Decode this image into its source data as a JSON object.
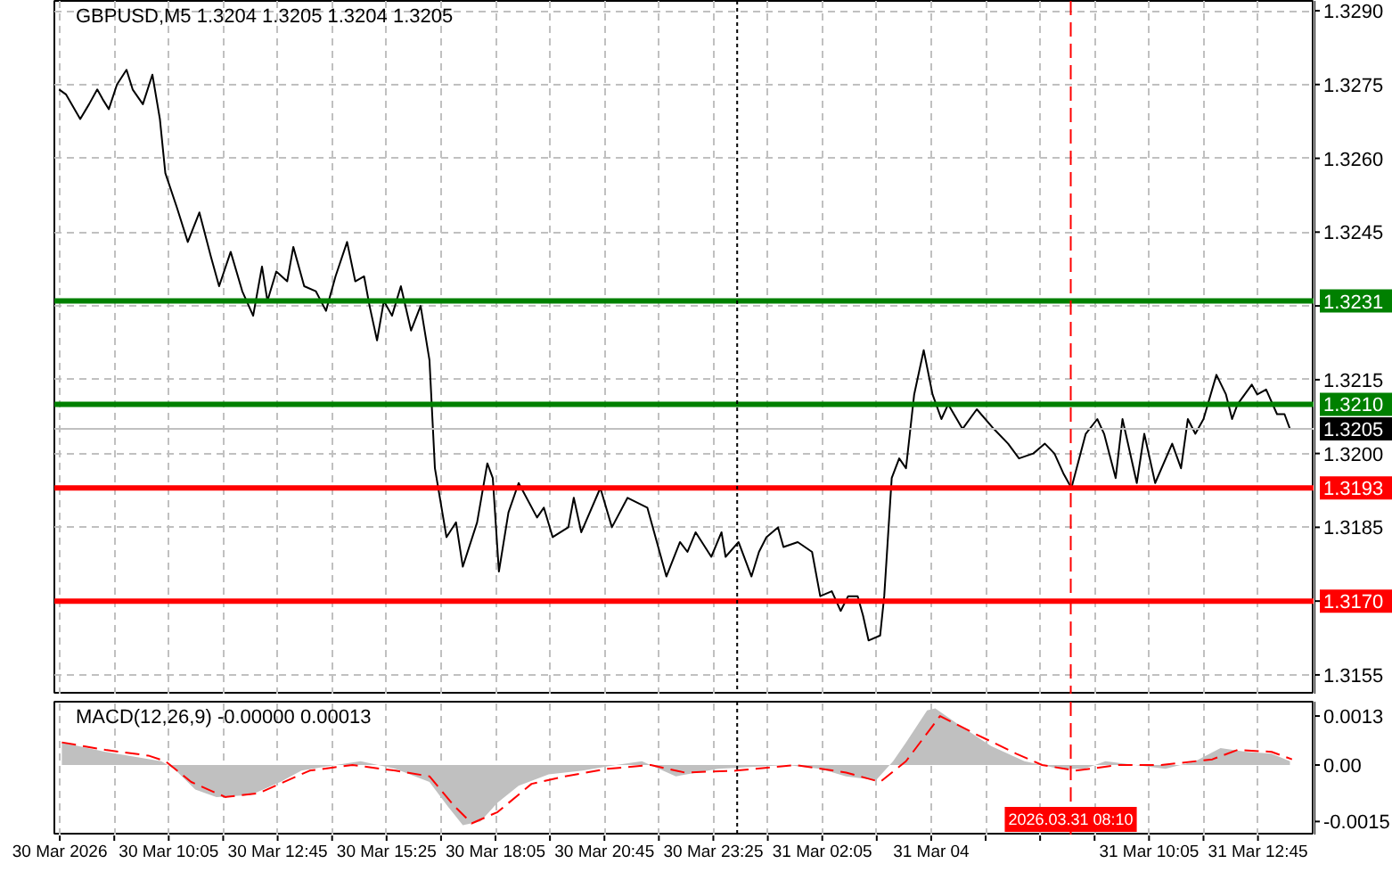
{
  "chart_data": [
    {
      "type": "line",
      "title": "GBPUSD,M5 1.3204 1.3205 1.3204 1.3205",
      "xlim": [
        "2026-03-30T07:17",
        "2026-03-31T14:08"
      ],
      "ylim": [
        1.3151,
        1.3292
      ],
      "xticks": [
        {
          "value": "2026-03-30T07:25",
          "label": null
        },
        {
          "value": "2026-03-30T08:45",
          "label": null
        },
        {
          "value": "2026-03-30T10:05",
          "label": null
        },
        {
          "value": "2026-03-30T11:25",
          "label": null
        },
        {
          "value": "2026-03-30T12:45",
          "label": null
        },
        {
          "value": "2026-03-30T14:05",
          "label": null
        },
        {
          "value": "2026-03-30T15:25",
          "label": null
        },
        {
          "value": "2026-03-30T16:45",
          "label": null
        },
        {
          "value": "2026-03-30T18:05",
          "label": null
        },
        {
          "value": "2026-03-30T19:25",
          "label": null
        },
        {
          "value": "2026-03-30T20:45",
          "label": null
        },
        {
          "value": "2026-03-30T22:05",
          "label": null
        },
        {
          "value": "2026-03-30T23:25",
          "label": null
        },
        {
          "value": "2026-03-31T00:45",
          "label": null
        },
        {
          "value": "2026-03-31T02:05",
          "label": null
        },
        {
          "value": "2026-03-31T03:25",
          "label": null
        },
        {
          "value": "2026-03-31T04:45",
          "label": null
        },
        {
          "value": "2026-03-31T06:05",
          "label": null
        },
        {
          "value": "2026-03-31T07:25",
          "label": null
        },
        {
          "value": "2026-03-31T08:45",
          "label": null
        },
        {
          "value": "2026-03-31T10:05",
          "label": null
        },
        {
          "value": "2026-03-31T11:25",
          "label": null
        },
        {
          "value": "2026-03-31T12:45",
          "label": null
        }
      ],
      "yticks": [
        {
          "value": 1.3155,
          "label": "1.3155"
        },
        {
          "value": 1.317,
          "label": null
        },
        {
          "value": 1.3185,
          "label": "1.3185"
        },
        {
          "value": 1.32,
          "label": "1.3200"
        },
        {
          "value": 1.3215,
          "label": "1.3215"
        },
        {
          "value": 1.323,
          "label": null
        },
        {
          "value": 1.3245,
          "label": "1.3245"
        },
        {
          "value": 1.326,
          "label": "1.3260"
        },
        {
          "value": 1.3275,
          "label": "1.3275"
        },
        {
          "value": 1.329,
          "label": "1.3290"
        }
      ],
      "grid": true,
      "tick_labels": "y",
      "series": [
        {
          "color": "#000000",
          "x": [
            "2026-03-30T07:24",
            "2026-03-30T07:34",
            "2026-03-30T07:55",
            "2026-03-30T08:08",
            "2026-03-30T08:20",
            "2026-03-30T08:28",
            "2026-03-30T08:37",
            "2026-03-30T08:49",
            "2026-03-30T09:03",
            "2026-03-30T09:12",
            "2026-03-30T09:27",
            "2026-03-30T09:41",
            "2026-03-30T09:52",
            "2026-03-30T10:00",
            "2026-03-30T10:17",
            "2026-03-30T10:33",
            "2026-03-30T10:50",
            "2026-03-30T11:07",
            "2026-03-30T11:19",
            "2026-03-30T11:36",
            "2026-03-30T11:53",
            "2026-03-30T12:09",
            "2026-03-30T12:22",
            "2026-03-30T12:30",
            "2026-03-30T12:43",
            "2026-03-30T12:59",
            "2026-03-30T13:08",
            "2026-03-30T13:24",
            "2026-03-30T13:41",
            "2026-03-30T13:56",
            "2026-03-30T14:10",
            "2026-03-30T14:27",
            "2026-03-30T14:39",
            "2026-03-30T14:52",
            "2026-03-30T15:00",
            "2026-03-30T15:11",
            "2026-03-30T15:21",
            "2026-03-30T15:33",
            "2026-03-30T15:46",
            "2026-03-30T16:01",
            "2026-03-30T16:15",
            "2026-03-30T16:28",
            "2026-03-30T16:36",
            "2026-03-30T16:53",
            "2026-03-30T17:07",
            "2026-03-30T17:17",
            "2026-03-30T17:38",
            "2026-03-30T17:53",
            "2026-03-30T18:01",
            "2026-03-30T18:10",
            "2026-03-30T18:24",
            "2026-03-30T18:39",
            "2026-03-30T19:06",
            "2026-03-30T19:16",
            "2026-03-30T19:29",
            "2026-03-30T19:52",
            "2026-03-30T20:00",
            "2026-03-30T20:11",
            "2026-03-30T20:39",
            "2026-03-30T20:56",
            "2026-03-30T21:19",
            "2026-03-30T21:48",
            "2026-03-30T22:16",
            "2026-03-30T22:36",
            "2026-03-30T22:47",
            "2026-03-30T22:59",
            "2026-03-30T23:22",
            "2026-03-30T23:37",
            "2026-03-30T23:43",
            "2026-03-31T00:02",
            "2026-03-31T00:21",
            "2026-03-31T00:32",
            "2026-03-31T00:43",
            "2026-03-31T01:00",
            "2026-03-31T01:08",
            "2026-03-31T01:29",
            "2026-03-31T01:50",
            "2026-03-31T02:02",
            "2026-03-31T02:19",
            "2026-03-31T02:32",
            "2026-03-31T02:43",
            "2026-03-31T02:57",
            "2026-03-31T03:05",
            "2026-03-31T03:13",
            "2026-03-31T03:30",
            "2026-03-31T03:36",
            "2026-03-31T03:47",
            "2026-03-31T03:58",
            "2026-03-31T04:08",
            "2026-03-31T04:20",
            "2026-03-31T04:34",
            "2026-03-31T04:47",
            "2026-03-31T05:00",
            "2026-03-31T05:10",
            "2026-03-31T05:31",
            "2026-03-31T05:52",
            "2026-03-31T06:17",
            "2026-03-31T06:38",
            "2026-03-31T06:54",
            "2026-03-31T07:15",
            "2026-03-31T07:32",
            "2026-03-31T07:46",
            "2026-03-31T07:59",
            "2026-03-31T08:11",
            "2026-03-31T08:32",
            "2026-03-31T08:49",
            "2026-03-31T08:59",
            "2026-03-31T09:16",
            "2026-03-31T09:26",
            "2026-03-31T09:47",
            "2026-03-31T09:58",
            "2026-03-31T10:14",
            "2026-03-31T10:39",
            "2026-03-31T10:52",
            "2026-03-31T11:02",
            "2026-03-31T11:13",
            "2026-03-31T11:25",
            "2026-03-31T11:44",
            "2026-03-31T11:58",
            "2026-03-31T12:07",
            "2026-03-31T12:15",
            "2026-03-31T12:36",
            "2026-03-31T12:44",
            "2026-03-31T12:57",
            "2026-03-31T13:13",
            "2026-03-31T13:24",
            "2026-03-31T13:32"
          ],
          "values": [
            1.3274,
            1.3273,
            1.3268,
            1.3271,
            1.3274,
            1.3272,
            1.327,
            1.3275,
            1.3278,
            1.3274,
            1.3271,
            1.3277,
            1.3268,
            1.3257,
            1.325,
            1.3243,
            1.3249,
            1.324,
            1.3234,
            1.3241,
            1.3233,
            1.3228,
            1.3238,
            1.3231,
            1.3237,
            1.3235,
            1.3242,
            1.3234,
            1.3233,
            1.3229,
            1.3236,
            1.3243,
            1.3235,
            1.3236,
            1.323,
            1.3223,
            1.3231,
            1.3228,
            1.3234,
            1.3225,
            1.323,
            1.3219,
            1.3197,
            1.3183,
            1.3186,
            1.3177,
            1.3186,
            1.3198,
            1.3195,
            1.3176,
            1.3188,
            1.3194,
            1.3187,
            1.3189,
            1.3183,
            1.3185,
            1.3191,
            1.3184,
            1.3193,
            1.3185,
            1.3191,
            1.3189,
            1.3175,
            1.3182,
            1.318,
            1.3184,
            1.3179,
            1.3184,
            1.3179,
            1.3182,
            1.3175,
            1.318,
            1.3183,
            1.3185,
            1.3181,
            1.3182,
            1.318,
            1.3171,
            1.3172,
            1.3168,
            1.3171,
            1.3171,
            1.3167,
            1.3162,
            1.3163,
            1.3171,
            1.3195,
            1.3199,
            1.3197,
            1.3212,
            1.3221,
            1.3212,
            1.3207,
            1.321,
            1.3205,
            1.3209,
            1.3205,
            1.3202,
            1.3199,
            1.32,
            1.3202,
            1.32,
            1.3196,
            1.3193,
            1.3204,
            1.3207,
            1.3204,
            1.3195,
            1.3207,
            1.3194,
            1.3204,
            1.3194,
            1.3202,
            1.3197,
            1.3207,
            1.3204,
            1.3207,
            1.3216,
            1.3212,
            1.3207,
            1.321,
            1.3214,
            1.3212,
            1.3213,
            1.3208,
            1.3208,
            1.3205
          ]
        }
      ],
      "ref_lines": [
        {
          "axis": "y",
          "value": 1.3231,
          "label": "1.3231",
          "color": "#008000"
        },
        {
          "axis": "y",
          "value": 1.321,
          "label": "1.3210",
          "color": "#008000"
        },
        {
          "axis": "y",
          "value": 1.3205,
          "label": "1.3205",
          "color": "#c0c0c0"
        },
        {
          "axis": "y",
          "value": 1.3193,
          "label": "1.3193",
          "color": "#ff0000"
        },
        {
          "axis": "y",
          "value": 1.317,
          "label": "1.3170",
          "color": "#ff0000"
        },
        {
          "axis": "x",
          "value": "2026-03-31T00:00",
          "color": "#000000",
          "line_style": "dotted"
        },
        {
          "axis": "x",
          "value": "2026-03-31T08:10",
          "color": "#ff0000",
          "line_style": "dashed"
        }
      ]
    },
    {
      "type": "area",
      "title": "MACD(12,26,9) -0.00000 0.00013",
      "xlim": [
        "2026-03-30T07:17",
        "2026-03-31T14:08"
      ],
      "ylim": [
        -0.00187,
        0.00168
      ],
      "xticks": [
        {
          "value": "2026-03-30T07:25",
          "label": "30 Mar 2026"
        },
        {
          "value": "2026-03-30T08:45",
          "label": null
        },
        {
          "value": "2026-03-30T10:05",
          "label": "30 Mar 10:05"
        },
        {
          "value": "2026-03-30T11:25",
          "label": null
        },
        {
          "value": "2026-03-30T12:45",
          "label": "30 Mar 12:45"
        },
        {
          "value": "2026-03-30T14:05",
          "label": null
        },
        {
          "value": "2026-03-30T15:25",
          "label": "30 Mar 15:25"
        },
        {
          "value": "2026-03-30T16:45",
          "label": null
        },
        {
          "value": "2026-03-30T18:05",
          "label": "30 Mar 18:05"
        },
        {
          "value": "2026-03-30T19:25",
          "label": null
        },
        {
          "value": "2026-03-30T20:45",
          "label": "30 Mar 20:45"
        },
        {
          "value": "2026-03-30T22:05",
          "label": null
        },
        {
          "value": "2026-03-30T23:25",
          "label": "30 Mar 23:25"
        },
        {
          "value": "2026-03-31T00:45",
          "label": null
        },
        {
          "value": "2026-03-31T02:05",
          "label": "31 Mar 02:05"
        },
        {
          "value": "2026-03-31T03:25",
          "label": null
        },
        {
          "value": "2026-03-31T04:45",
          "label": "31 Mar 04"
        },
        {
          "value": "2026-03-31T06:05",
          "label": null
        },
        {
          "value": "2026-03-31T07:25",
          "label": null
        },
        {
          "value": "2026-03-31T08:45",
          "label": null
        },
        {
          "value": "2026-03-31T10:05",
          "label": "31 Mar 10:05"
        },
        {
          "value": "2026-03-31T11:25",
          "label": null
        },
        {
          "value": "2026-03-31T12:45",
          "label": "31 Mar 12:45"
        }
      ],
      "yticks": [
        {
          "value": -0.0015,
          "label": "-0.0015"
        },
        {
          "value": 0,
          "label": "0.00"
        },
        {
          "value": 0.0013,
          "label": "0.0013"
        }
      ],
      "grid": "x",
      "series": [
        {
          "type": "area",
          "color": "#c0c0c0",
          "x": [
            "2026-03-30T07:28",
            "2026-03-30T08:32",
            "2026-03-30T09:54",
            "2026-03-30T10:13",
            "2026-03-30T10:44",
            "2026-03-30T11:15",
            "2026-03-30T12:05",
            "2026-03-30T12:49",
            "2026-03-30T13:20",
            "2026-03-30T14:10",
            "2026-03-30T14:47",
            "2026-03-30T15:38",
            "2026-03-30T16:28",
            "2026-03-30T16:55",
            "2026-03-30T17:17",
            "2026-03-30T17:43",
            "2026-03-30T18:08",
            "2026-03-30T18:39",
            "2026-03-30T19:23",
            "2026-03-30T20:13",
            "2026-03-30T21:02",
            "2026-03-30T21:40",
            "2026-03-30T22:30",
            "2026-03-30T23:32",
            "2026-03-31T01:13",
            "2026-03-31T02:02",
            "2026-03-31T02:40",
            "2026-03-31T03:24",
            "2026-03-31T03:49",
            "2026-03-31T04:08",
            "2026-03-31T04:39",
            "2026-03-31T04:51",
            "2026-03-31T05:23",
            "2026-03-31T06:13",
            "2026-03-31T07:02",
            "2026-03-31T07:53",
            "2026-03-31T08:30",
            "2026-03-31T09:01",
            "2026-03-31T09:45",
            "2026-03-31T10:29",
            "2026-03-31T11:13",
            "2026-03-31T11:50",
            "2026-03-31T12:28",
            "2026-03-31T13:05",
            "2026-03-31T13:32"
          ],
          "values": [
            0.0006,
            0.00035,
            0.0001,
            -0.0001,
            -0.00065,
            -0.00085,
            -0.0008,
            -0.00045,
            -0.00015,
            0,
            0.0001,
            -0.0001,
            -0.00045,
            -0.0011,
            -0.0016,
            -0.0015,
            -0.001,
            -0.00055,
            -0.00025,
            -0.00015,
            0,
            0.0001,
            -0.0003,
            -0.0001,
            0,
            -0.0001,
            -0.0003,
            -0.0004,
            0.0001,
            0.0006,
            0.00145,
            0.0015,
            0.0011,
            0.0005,
            0.0001,
            -0.0001,
            -0.0001,
            0.0001,
            0,
            -0.0001,
            0.0001,
            0.00045,
            0.00035,
            0.0003,
            0.0001
          ]
        },
        {
          "type": "line",
          "color": "#ff0000",
          "line_style": "dashed",
          "x": [
            "2026-03-30T07:28",
            "2026-03-30T08:32",
            "2026-03-30T09:35",
            "2026-03-30T10:00",
            "2026-03-30T10:38",
            "2026-03-30T11:28",
            "2026-03-30T12:17",
            "2026-03-30T13:32",
            "2026-03-30T14:35",
            "2026-03-30T15:38",
            "2026-03-30T16:28",
            "2026-03-30T17:05",
            "2026-03-30T17:30",
            "2026-03-30T18:08",
            "2026-03-30T18:58",
            "2026-03-30T19:47",
            "2026-03-30T20:50",
            "2026-03-30T21:53",
            "2026-03-30T22:43",
            "2026-03-30T23:58",
            "2026-03-31T01:25",
            "2026-03-31T02:40",
            "2026-03-31T03:30",
            "2026-03-31T04:08",
            "2026-03-31T04:58",
            "2026-03-31T05:47",
            "2026-03-31T06:50",
            "2026-03-31T07:28",
            "2026-03-31T08:17",
            "2026-03-31T09:20",
            "2026-03-31T10:23",
            "2026-03-31T11:38",
            "2026-03-31T12:15",
            "2026-03-31T13:05",
            "2026-03-31T13:35"
          ],
          "values": [
            0.0006,
            0.0004,
            0.00025,
            0.0001,
            -0.00045,
            -0.00085,
            -0.00075,
            -0.00015,
            0,
            -0.00015,
            -0.0003,
            -0.0011,
            -0.00155,
            -0.00125,
            -0.0005,
            -0.0003,
            -0.0001,
            0,
            -0.0002,
            -0.00015,
            0,
            -0.0002,
            -0.00045,
            0.0001,
            0.0013,
            0.00085,
            0.0003,
            0,
            -0.00015,
            0,
            0,
            0.00015,
            0.0004,
            0.00035,
            0.00015
          ]
        }
      ],
      "ref_lines": [
        {
          "axis": "x",
          "value": "2026-03-31T00:00",
          "color": "#000000",
          "line_style": "dotted"
        },
        {
          "axis": "x",
          "value": "2026-03-31T08:10",
          "label": "2026.03.31 08:10",
          "color": "#ff0000",
          "line_style": "dashed"
        }
      ]
    }
  ]
}
